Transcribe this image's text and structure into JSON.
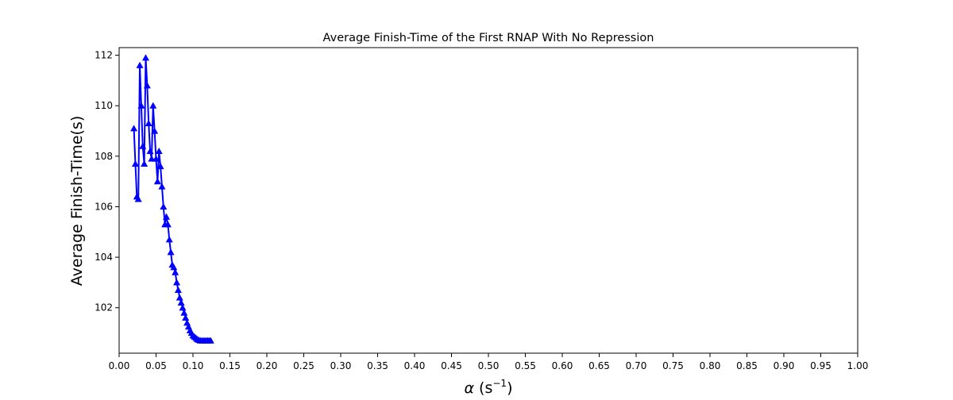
{
  "chart_data": {
    "type": "line",
    "title": "Average Finish-Time of the First RNAP With No Repression",
    "xlabel_symbol": "α",
    "xlabel_unit": " (s",
    "xlabel_exp": "−1",
    "xlabel_close": ")",
    "ylabel": "Average Finish-Time(s)",
    "xlim": [
      0.0,
      1.0
    ],
    "ylim": [
      100.2,
      112.3
    ],
    "xticks": [
      0.0,
      0.05,
      0.1,
      0.15,
      0.2,
      0.25,
      0.3,
      0.35,
      0.4,
      0.45,
      0.5,
      0.55,
      0.6,
      0.65,
      0.7,
      0.75,
      0.8,
      0.85,
      0.9,
      0.95,
      1.0
    ],
    "xtick_labels": [
      "0.00",
      "0.05",
      "0.10",
      "0.15",
      "0.20",
      "0.25",
      "0.30",
      "0.35",
      "0.40",
      "0.45",
      "0.50",
      "0.55",
      "0.60",
      "0.65",
      "0.70",
      "0.75",
      "0.80",
      "0.85",
      "0.90",
      "0.95",
      "1.00"
    ],
    "yticks": [
      102,
      104,
      106,
      108,
      110,
      112
    ],
    "ytick_labels": [
      "102",
      "104",
      "106",
      "108",
      "110",
      "112"
    ],
    "grid": false,
    "legend": "none",
    "series": [
      {
        "color": "#0000ff",
        "marker": "triangle-up",
        "x": [
          0.02,
          0.022,
          0.024,
          0.026,
          0.028,
          0.03,
          0.032,
          0.034,
          0.036,
          0.038,
          0.04,
          0.042,
          0.044,
          0.046,
          0.048,
          0.05,
          0.052,
          0.054,
          0.056,
          0.058,
          0.06,
          0.062,
          0.064,
          0.066,
          0.068,
          0.07,
          0.072,
          0.074,
          0.076,
          0.078,
          0.08,
          0.082,
          0.084,
          0.086,
          0.088,
          0.09,
          0.092,
          0.094,
          0.096,
          0.098,
          0.1,
          0.102,
          0.104,
          0.106,
          0.108,
          0.11,
          0.112,
          0.114,
          0.116,
          0.118,
          0.12,
          0.122,
          0.124
        ],
        "y": [
          109.1,
          107.7,
          106.4,
          106.3,
          111.6,
          110.0,
          108.4,
          107.7,
          111.9,
          110.8,
          109.3,
          108.2,
          107.9,
          110.0,
          109.0,
          107.9,
          107.0,
          108.2,
          107.6,
          106.8,
          106.0,
          105.3,
          105.6,
          105.3,
          104.7,
          104.2,
          103.7,
          103.6,
          103.4,
          103.0,
          102.7,
          102.4,
          102.2,
          102.0,
          101.8,
          101.6,
          101.4,
          101.25,
          101.1,
          101.0,
          100.9,
          100.85,
          100.8,
          100.75,
          100.72,
          100.7,
          100.7,
          100.7,
          100.7,
          100.7,
          100.7,
          100.7,
          100.7
        ]
      }
    ]
  }
}
